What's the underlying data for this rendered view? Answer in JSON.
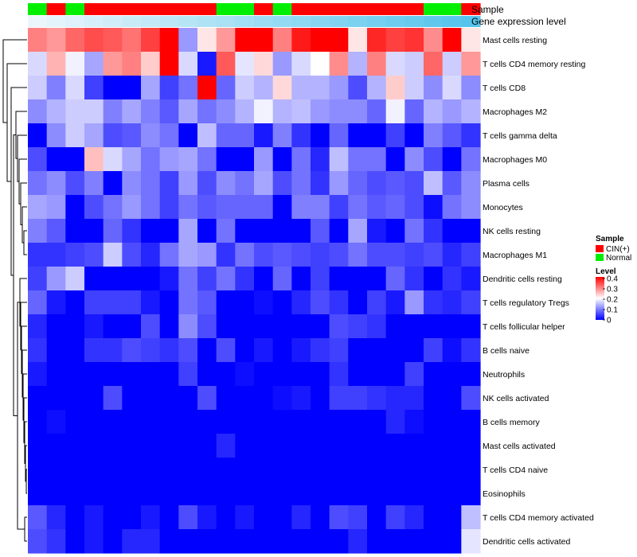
{
  "chart_data": {
    "type": "heatmap",
    "annotation_labels": {
      "sample": "Sample",
      "expression": "Gene expression level"
    },
    "sample_groups": [
      "Normal",
      "CIN(+)",
      "Normal",
      "CIN(+)",
      "CIN(+)",
      "CIN(+)",
      "CIN(+)",
      "CIN(+)",
      "CIN(+)",
      "CIN(+)",
      "Normal",
      "Normal",
      "CIN(+)",
      "Normal",
      "CIN(+)",
      "CIN(+)",
      "CIN(+)",
      "CIN(+)",
      "CIN(+)",
      "CIN(+)",
      "CIN(+)",
      "Normal",
      "Normal",
      "CIN(+)"
    ],
    "rows": [
      "Mast cells resting",
      "T cells CD4 memory resting",
      "T cells CD8",
      "Macrophages M2",
      "T cells gamma delta",
      "Macrophages M0",
      "Plasma cells",
      "Monocytes",
      "NK cells resting",
      "Macrophages M1",
      "Dendritic cells resting",
      "T cells regulatory  Tregs",
      "T cells follicular helper",
      "B cells naive",
      "Neutrophils",
      "NK cells activated",
      "B cells memory",
      "Mast cells activated",
      "T cells CD4 naive",
      "Eosinophils",
      "T cells CD4 memory activated",
      "Dendritic cells activated"
    ],
    "values": [
      [
        0.3,
        0.28,
        0.32,
        0.34,
        0.33,
        0.31,
        0.35,
        0.4,
        0.12,
        0.22,
        0.28,
        0.4,
        0.4,
        0.3,
        0.38,
        0.4,
        0.4,
        0.22,
        0.37,
        0.35,
        0.36,
        0.29,
        0.4,
        0.22
      ],
      [
        0.17,
        0.26,
        0.19,
        0.13,
        0.28,
        0.3,
        0.24,
        0.4,
        0.17,
        0.02,
        0.33,
        0.18,
        0.23,
        0.12,
        0.17,
        0.2,
        0.29,
        0.14,
        0.3,
        0.17,
        0.16,
        0.32,
        0.16,
        0.28
      ],
      [
        0.16,
        0.1,
        0.17,
        0.05,
        0.0,
        0.0,
        0.13,
        0.05,
        0.09,
        0.4,
        0.08,
        0.16,
        0.14,
        0.23,
        0.14,
        0.14,
        0.12,
        0.06,
        0.14,
        0.24,
        0.16,
        0.11,
        0.17,
        0.11
      ],
      [
        0.11,
        0.14,
        0.16,
        0.16,
        0.1,
        0.13,
        0.1,
        0.07,
        0.13,
        0.09,
        0.11,
        0.14,
        0.19,
        0.14,
        0.15,
        0.12,
        0.11,
        0.11,
        0.08,
        0.19,
        0.08,
        0.14,
        0.12,
        0.14
      ],
      [
        0.0,
        0.11,
        0.16,
        0.13,
        0.06,
        0.07,
        0.11,
        0.09,
        0.0,
        0.15,
        0.08,
        0.08,
        0.02,
        0.1,
        0.04,
        0.0,
        0.08,
        0.0,
        0.0,
        0.05,
        0.0,
        0.1,
        0.07,
        0.04
      ],
      [
        0.06,
        0.0,
        0.0,
        0.25,
        0.17,
        0.13,
        0.09,
        0.12,
        0.13,
        0.09,
        0.0,
        0.0,
        0.12,
        0.0,
        0.09,
        0.03,
        0.15,
        0.09,
        0.09,
        0.0,
        0.11,
        0.06,
        0.0,
        0.09
      ],
      [
        0.09,
        0.11,
        0.06,
        0.1,
        0.0,
        0.11,
        0.09,
        0.05,
        0.12,
        0.06,
        0.11,
        0.09,
        0.13,
        0.06,
        0.09,
        0.04,
        0.12,
        0.08,
        0.06,
        0.07,
        0.06,
        0.15,
        0.07,
        0.11
      ],
      [
        0.13,
        0.12,
        0.0,
        0.06,
        0.09,
        0.12,
        0.09,
        0.05,
        0.09,
        0.07,
        0.08,
        0.08,
        0.08,
        0.0,
        0.1,
        0.1,
        0.05,
        0.09,
        0.07,
        0.08,
        0.06,
        0.01,
        0.09,
        0.11
      ],
      [
        0.1,
        0.07,
        0.0,
        0.0,
        0.08,
        0.04,
        0.0,
        0.0,
        0.13,
        0.0,
        0.09,
        0.0,
        0.0,
        0.0,
        0.0,
        0.07,
        0.0,
        0.13,
        0.02,
        0.0,
        0.09,
        0.04,
        0.0,
        0.0
      ],
      [
        0.04,
        0.04,
        0.05,
        0.06,
        0.16,
        0.06,
        0.03,
        0.09,
        0.13,
        0.12,
        0.04,
        0.09,
        0.06,
        0.07,
        0.06,
        0.05,
        0.06,
        0.09,
        0.06,
        0.06,
        0.05,
        0.06,
        0.03,
        0.05
      ],
      [
        0.05,
        0.12,
        0.16,
        0.0,
        0.0,
        0.0,
        0.0,
        0.02,
        0.09,
        0.05,
        0.09,
        0.04,
        0.0,
        0.08,
        0.0,
        0.05,
        0.0,
        0.0,
        0.0,
        0.08,
        0.04,
        0.0,
        0.04,
        0.02
      ],
      [
        0.08,
        0.02,
        0.0,
        0.05,
        0.05,
        0.05,
        0.02,
        0.0,
        0.09,
        0.07,
        0.0,
        0.0,
        0.01,
        0.0,
        0.03,
        0.06,
        0.04,
        0.0,
        0.05,
        0.02,
        0.12,
        0.04,
        0.03,
        0.05
      ],
      [
        0.03,
        0.0,
        0.0,
        0.02,
        0.0,
        0.0,
        0.06,
        0.0,
        0.11,
        0.06,
        0.0,
        0.0,
        0.0,
        0.0,
        0.0,
        0.0,
        0.06,
        0.05,
        0.04,
        0.0,
        0.0,
        0.0,
        0.0,
        0.0
      ],
      [
        0.04,
        0.0,
        0.0,
        0.04,
        0.04,
        0.06,
        0.05,
        0.04,
        0.06,
        0.0,
        0.06,
        0.0,
        0.02,
        0.0,
        0.02,
        0.04,
        0.05,
        0.0,
        0.0,
        0.0,
        0.0,
        0.05,
        0.01,
        0.04
      ],
      [
        0.02,
        0.0,
        0.0,
        0.0,
        0.0,
        0.0,
        0.0,
        0.0,
        0.05,
        0.0,
        0.0,
        0.01,
        0.0,
        0.0,
        0.0,
        0.0,
        0.04,
        0.0,
        0.0,
        0.0,
        0.05,
        0.0,
        0.0,
        0.0
      ],
      [
        0.0,
        0.0,
        0.0,
        0.0,
        0.06,
        0.0,
        0.0,
        0.0,
        0.0,
        0.06,
        0.0,
        0.0,
        0.0,
        0.01,
        0.02,
        0.0,
        0.05,
        0.05,
        0.04,
        0.03,
        0.03,
        0.0,
        0.0,
        0.06
      ],
      [
        0.0,
        0.01,
        0.0,
        0.0,
        0.0,
        0.0,
        0.0,
        0.0,
        0.0,
        0.0,
        0.0,
        0.0,
        0.0,
        0.0,
        0.0,
        0.0,
        0.0,
        0.0,
        0.0,
        0.03,
        0.01,
        0.0,
        0.0,
        0.0
      ],
      [
        0.0,
        0.0,
        0.0,
        0.0,
        0.0,
        0.0,
        0.0,
        0.0,
        0.0,
        0.0,
        0.03,
        0.0,
        0.0,
        0.0,
        0.0,
        0.0,
        0.0,
        0.0,
        0.0,
        0.0,
        0.0,
        0.0,
        0.0,
        0.0
      ],
      [
        0.0,
        0.0,
        0.0,
        0.0,
        0.0,
        0.0,
        0.0,
        0.0,
        0.0,
        0.0,
        0.0,
        0.0,
        0.0,
        0.0,
        0.0,
        0.0,
        0.0,
        0.0,
        0.0,
        0.0,
        0.0,
        0.0,
        0.0,
        0.0
      ],
      [
        0.0,
        0.0,
        0.0,
        0.0,
        0.0,
        0.0,
        0.0,
        0.0,
        0.0,
        0.0,
        0.0,
        0.0,
        0.0,
        0.0,
        0.0,
        0.0,
        0.0,
        0.0,
        0.0,
        0.0,
        0.0,
        0.0,
        0.0,
        0.0
      ],
      [
        0.07,
        0.03,
        0.0,
        0.02,
        0.0,
        0.0,
        0.02,
        0.0,
        0.06,
        0.02,
        0.0,
        0.02,
        0.0,
        0.0,
        0.03,
        0.0,
        0.06,
        0.05,
        0.0,
        0.05,
        0.03,
        0.0,
        0.0,
        0.15
      ],
      [
        0.06,
        0.04,
        0.0,
        0.02,
        0.0,
        0.03,
        0.03,
        0.0,
        0.0,
        0.0,
        0.0,
        0.0,
        0.0,
        0.0,
        0.0,
        0.0,
        0.0,
        0.03,
        0.0,
        0.0,
        0.0,
        0.0,
        0.0,
        0.18
      ]
    ],
    "color_scale": {
      "min": 0,
      "mid": 0.2,
      "max": 0.4,
      "low_color": "#0000FF",
      "mid_color": "#FFFFFF",
      "high_color": "#FF0000"
    },
    "legend": {
      "sample_title": "Sample",
      "sample_items": [
        {
          "label": "CIN(+)",
          "color": "#FF0000"
        },
        {
          "label": "Normal",
          "color": "#00EE00"
        }
      ],
      "level_title": "Level",
      "level_ticks": [
        "0.4",
        "0.3",
        "0.2",
        "0.1",
        "0"
      ]
    },
    "expression_bar_colors": [
      "#EAF6FB",
      "#54C4EC"
    ]
  }
}
